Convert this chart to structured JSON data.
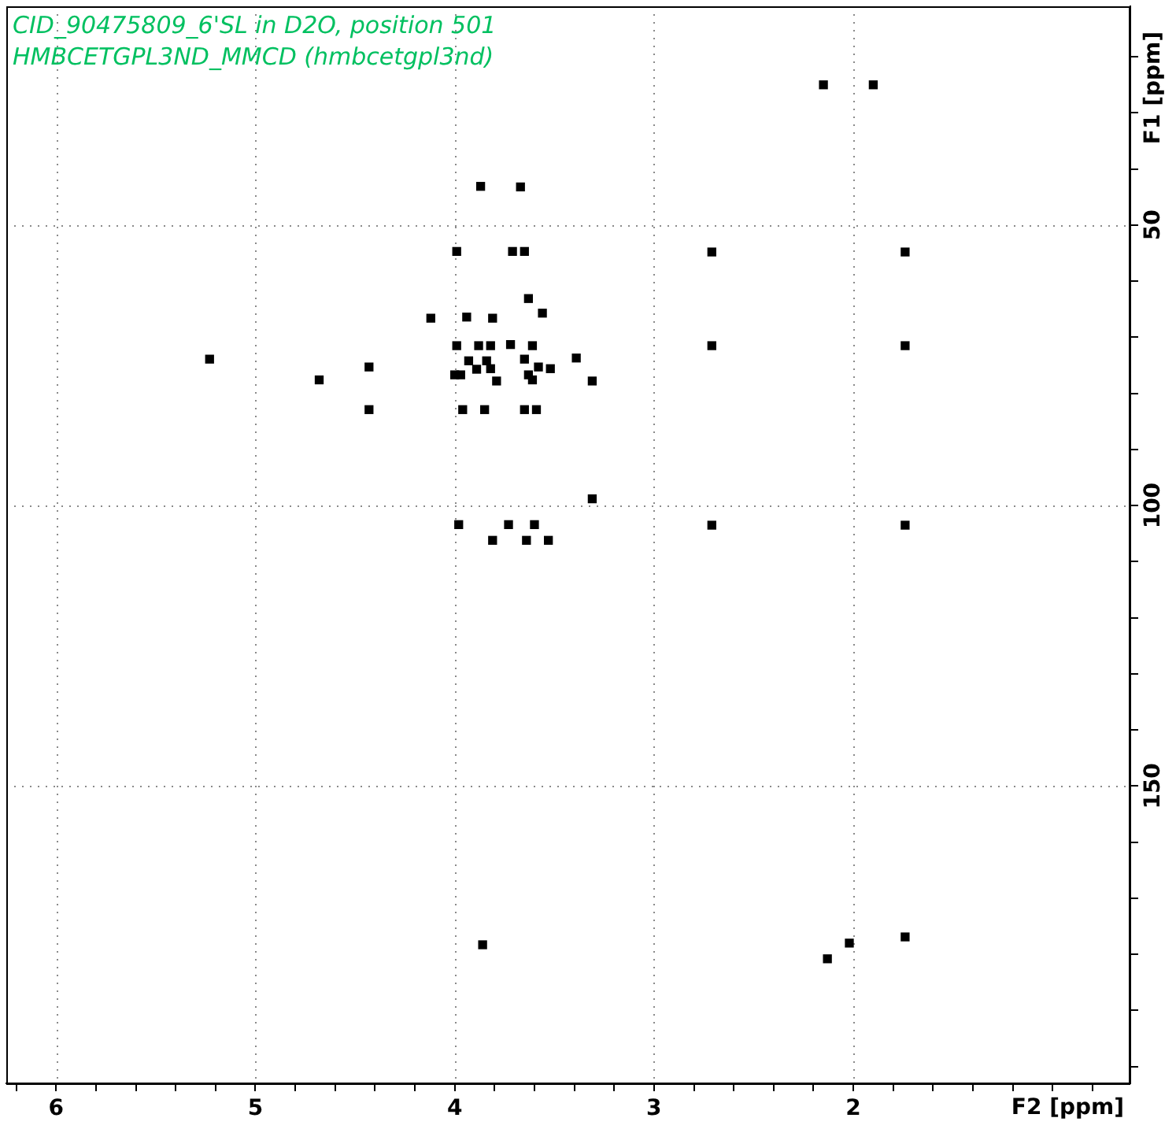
{
  "chart_data": {
    "type": "scatter",
    "title": "CID_90475809_6'SL in D2O, position 501",
    "subtitle": "HMBCETGPL3ND_MMCD (hmbcetgpl3nd)",
    "xlabel": "F2 [ppm]",
    "ylabel": "F1 [ppm]",
    "x": [
      2.15,
      1.9,
      2.71,
      1.74,
      2.71,
      1.74,
      2.71,
      1.74,
      3.86,
      2.02,
      2.13,
      1.74,
      3.31,
      3.98,
      3.73,
      3.6,
      3.81,
      3.64,
      3.53,
      3.87,
      3.67,
      3.99,
      3.71,
      3.65,
      3.63,
      3.56,
      4.12,
      3.94,
      3.81,
      5.23,
      4.68,
      4.43,
      4.43,
      3.99,
      3.88,
      3.82,
      3.72,
      3.61,
      3.93,
      3.84,
      3.65,
      3.58,
      3.52,
      3.39,
      3.97,
      3.89,
      3.82,
      3.79,
      3.63,
      3.61,
      3.31,
      3.96,
      3.85,
      3.65,
      3.59,
      4.0
    ],
    "values": [
      25.0,
      25.0,
      54.8,
      54.8,
      71.5,
      71.5,
      103.5,
      103.5,
      178.3,
      178.0,
      180.8,
      176.9,
      98.8,
      103.4,
      103.4,
      103.4,
      106.2,
      106.2,
      106.2,
      43.1,
      43.2,
      54.7,
      54.7,
      54.7,
      63.1,
      65.7,
      66.6,
      66.4,
      66.6,
      73.9,
      77.6,
      75.3,
      82.9,
      71.5,
      71.5,
      71.5,
      71.3,
      71.5,
      74.2,
      74.2,
      73.9,
      75.3,
      75.6,
      73.7,
      76.7,
      75.7,
      75.6,
      77.8,
      76.7,
      77.6,
      77.8,
      82.9,
      82.9,
      82.9,
      82.9,
      76.7
    ],
    "color": "#000000",
    "marker": "square",
    "xlim": [
      6.25,
      0.61
    ],
    "xticks": [
      {
        "value": 6.2,
        "label": null
      },
      6,
      {
        "value": 5.8,
        "label": null
      },
      {
        "value": 5.6,
        "label": null
      },
      {
        "value": 5.4,
        "label": null
      },
      {
        "value": 5.2,
        "label": null
      },
      5,
      {
        "value": 4.8,
        "label": null
      },
      {
        "value": 4.6,
        "label": null
      },
      {
        "value": 4.4,
        "label": null
      },
      {
        "value": 4.2,
        "label": null
      },
      4,
      {
        "value": 3.8,
        "label": null
      },
      {
        "value": 3.6,
        "label": null
      },
      {
        "value": 3.4,
        "label": null
      },
      {
        "value": 3.2,
        "label": null
      },
      3,
      {
        "value": 2.8,
        "label": null
      },
      {
        "value": 2.6,
        "label": null
      },
      {
        "value": 2.4,
        "label": null
      },
      {
        "value": 2.2,
        "label": null
      },
      2,
      {
        "value": 1.8,
        "label": null
      },
      {
        "value": 1.6,
        "label": null
      },
      {
        "value": 1.4,
        "label": null
      },
      {
        "value": 1.2,
        "label": null
      },
      {
        "value": 1,
        "label": null
      },
      {
        "value": 0.8,
        "label": null
      }
    ],
    "ylim": [
      203,
      11
    ],
    "yticks": [
      {
        "value": 20,
        "label": null
      },
      {
        "value": 30,
        "label": null
      },
      {
        "value": 40,
        "label": null
      },
      50,
      {
        "value": 60,
        "label": null
      },
      {
        "value": 70,
        "label": null
      },
      {
        "value": 80,
        "label": null
      },
      {
        "value": 90,
        "label": null
      },
      100,
      {
        "value": 110,
        "label": null
      },
      {
        "value": 120,
        "label": null
      },
      {
        "value": 130,
        "label": null
      },
      {
        "value": 140,
        "label": null
      },
      150,
      {
        "value": 160,
        "label": null
      },
      {
        "value": 170,
        "label": null
      },
      {
        "value": 180,
        "label": null
      },
      {
        "value": 190,
        "label": null
      },
      {
        "value": 200,
        "label": null
      }
    ],
    "grid": true
  }
}
